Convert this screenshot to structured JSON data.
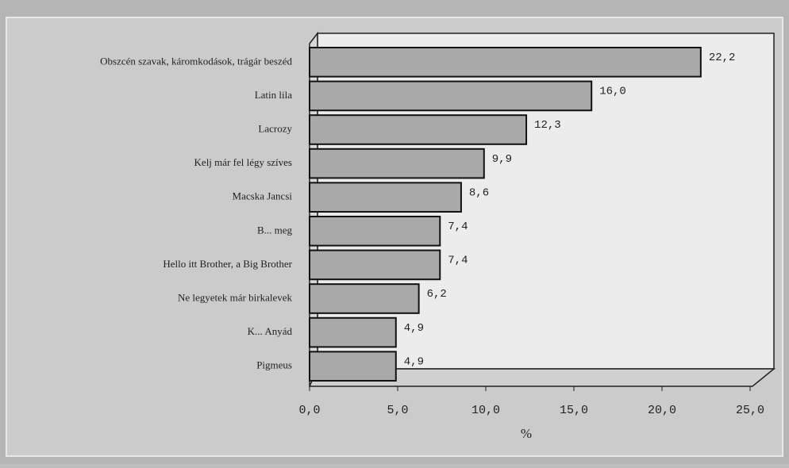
{
  "chart_data": {
    "type": "bar",
    "orientation": "horizontal",
    "categories": [
      "Obszcén szavak, káromkodások, trágár beszéd",
      "Latin lila",
      "Lacrozy",
      "Kelj már fel légy szíves",
      "Macska Jancsi",
      "B... meg",
      "Hello itt Brother, a Big Brother",
      "Ne legyetek már birkalevek",
      "K... Anyád",
      "Pigmeus"
    ],
    "values": [
      22.2,
      16.0,
      12.3,
      9.9,
      8.6,
      7.4,
      7.4,
      6.2,
      4.9,
      4.9
    ],
    "value_labels": [
      "22,2",
      "16,0",
      "12,3",
      "9,9",
      "8,6",
      "7,4",
      "7,4",
      "6,2",
      "4,9",
      "4,9"
    ],
    "color": "#a9a9a9",
    "xlim": [
      0,
      25
    ],
    "xticks": [
      {
        "value": 0,
        "label": "0,0"
      },
      {
        "value": 5,
        "label": "5,0"
      },
      {
        "value": 10,
        "label": "10,0"
      },
      {
        "value": 15,
        "label": "15,0"
      },
      {
        "value": 20,
        "label": "20,0"
      },
      {
        "value": 25,
        "label": "25,0"
      }
    ],
    "xlabel": "%"
  }
}
